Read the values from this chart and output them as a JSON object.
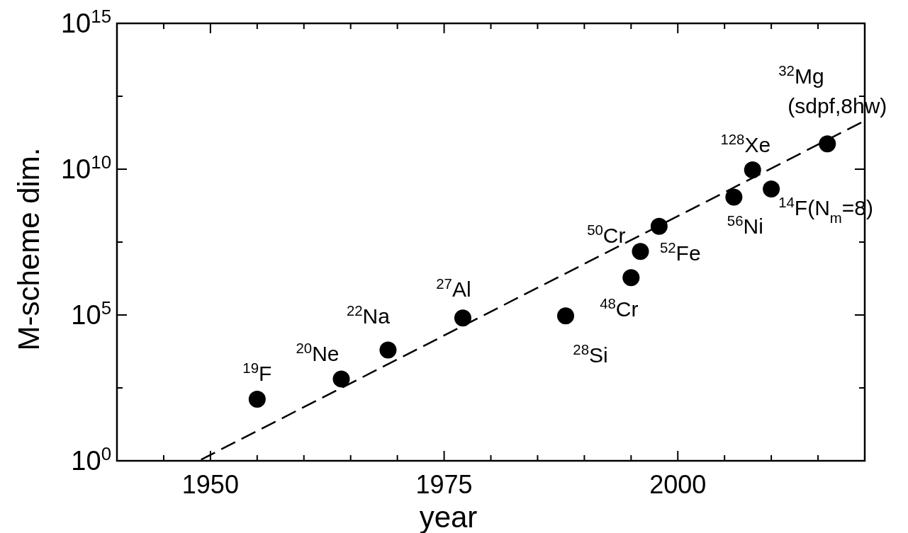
{
  "chart_data": {
    "type": "scatter",
    "xlabel": "year",
    "ylabel": "M-scheme dim.",
    "log": true,
    "xlim": [
      1940,
      2020
    ],
    "ylim": [
      1,
      1000000000000000.0
    ],
    "xticks": [
      {
        "value": 1945,
        "label": null
      },
      1950,
      {
        "value": 1955,
        "label": null
      },
      {
        "value": 1960,
        "label": null
      },
      {
        "value": 1965,
        "label": null
      },
      {
        "value": 1970,
        "label": null
      },
      1975,
      {
        "value": 1980,
        "label": null
      },
      {
        "value": 1985,
        "label": null
      },
      {
        "value": 1990,
        "label": null
      },
      {
        "value": 1995,
        "label": null
      },
      2000,
      {
        "value": 2005,
        "label": null
      },
      {
        "value": 2010,
        "label": null
      },
      {
        "value": 2015,
        "label": null
      }
    ],
    "yticks": [
      {
        "value": 1,
        "label": "10$^{0}$"
      },
      {
        "value": 316.23,
        "label": null
      },
      {
        "value": 100000,
        "label": "10$^{5}$"
      },
      {
        "value": 31623000,
        "label": null
      },
      {
        "value": 10000000000,
        "label": "10$^{10}$"
      },
      {
        "value": 3162300000000,
        "label": null
      },
      {
        "value": 1000000000000000,
        "label": "10$^{15}$"
      }
    ],
    "series": [
      {
        "marker": "circle",
        "color": "#000000",
        "x": [
          1955,
          1964,
          1969,
          1977,
          1988,
          1995,
          1996,
          1998,
          2006,
          2008,
          2010,
          2016
        ],
        "values": [
          130,
          640,
          6300,
          79000,
          93000,
          1900000,
          15000000,
          110000000,
          1100000000,
          9500000000,
          2100000000,
          74000000000
        ]
      },
      {
        "type": "line",
        "color": "#000000",
        "line_style": "dashed",
        "x": [
          1949,
          2020
        ],
        "values": [
          1.1,
          460000000000
        ]
      }
    ],
    "annotations": [
      {
        "text": "$^{19}$F",
        "x": 1955,
        "y": 130
      },
      {
        "text": "$^{20}$Ne",
        "x": 1964,
        "y": 640
      },
      {
        "text": "$^{22}$Na",
        "x": 1969,
        "y": 6300
      },
      {
        "text": "$^{27}$Al",
        "x": 1977,
        "y": 79000
      },
      {
        "text": "$^{28}$Si",
        "x": 1988,
        "y": 93000
      },
      {
        "text": "$^{48}$Cr",
        "x": 1995,
        "y": 1900000
      },
      {
        "text": "$^{50}$Cr",
        "x": 1996,
        "y": 15000000
      },
      {
        "text": "$^{52}$Fe",
        "x": 1998,
        "y": 110000000
      },
      {
        "text": "$^{56}$Ni",
        "x": 2006,
        "y": 1100000000
      },
      {
        "text": "$^{128}$Xe",
        "x": 2008,
        "y": 9500000000
      },
      {
        "text": "$^{14}$F(N$_{m}$=8)",
        "x": 2010,
        "y": 2100000000
      },
      {
        "text": "$^{32}$Mg\n(sdpf,8hw)",
        "x": 2016,
        "y": 74000000000
      }
    ]
  }
}
